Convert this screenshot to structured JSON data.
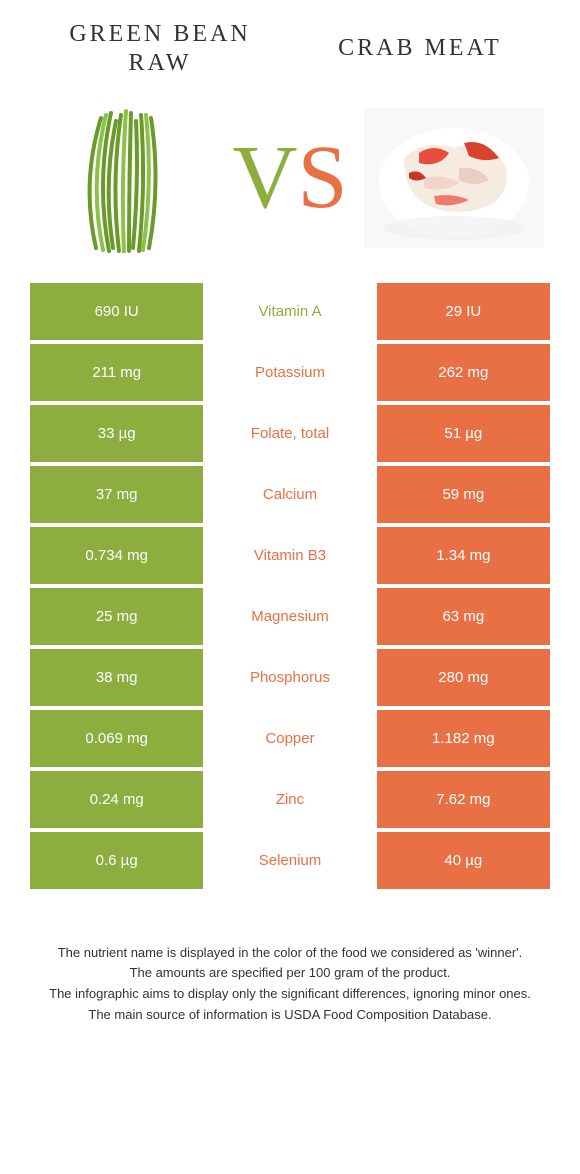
{
  "colors": {
    "green": "#8bae3f",
    "orange": "#e97044",
    "text": "#333333",
    "white": "#ffffff"
  },
  "header": {
    "left_line1": "GREEN BEAN",
    "left_line2": "RAW",
    "right": "CRAB MEAT",
    "vs_v": "V",
    "vs_s": "S"
  },
  "rows": [
    {
      "left": "690 IU",
      "mid": "Vitamin A",
      "right": "29 IU",
      "winner": "left"
    },
    {
      "left": "211 mg",
      "mid": "Potassium",
      "right": "262 mg",
      "winner": "right"
    },
    {
      "left": "33 µg",
      "mid": "Folate, total",
      "right": "51 µg",
      "winner": "right"
    },
    {
      "left": "37 mg",
      "mid": "Calcium",
      "right": "59 mg",
      "winner": "right"
    },
    {
      "left": "0.734 mg",
      "mid": "Vitamin B3",
      "right": "1.34 mg",
      "winner": "right"
    },
    {
      "left": "25 mg",
      "mid": "Magnesium",
      "right": "63 mg",
      "winner": "right"
    },
    {
      "left": "38 mg",
      "mid": "Phosphorus",
      "right": "280 mg",
      "winner": "right"
    },
    {
      "left": "0.069 mg",
      "mid": "Copper",
      "right": "1.182 mg",
      "winner": "right"
    },
    {
      "left": "0.24 mg",
      "mid": "Zinc",
      "right": "7.62 mg",
      "winner": "right"
    },
    {
      "left": "0.6 µg",
      "mid": "Selenium",
      "right": "40 µg",
      "winner": "right"
    }
  ],
  "footer": {
    "line1": "The nutrient name is displayed in the color of the food we considered as 'winner'.",
    "line2": "The amounts are specified per 100 gram of the product.",
    "line3": "The infographic aims to display only the significant differences, ignoring minor ones.",
    "line4": "The main source of information is USDA Food Composition Database."
  }
}
